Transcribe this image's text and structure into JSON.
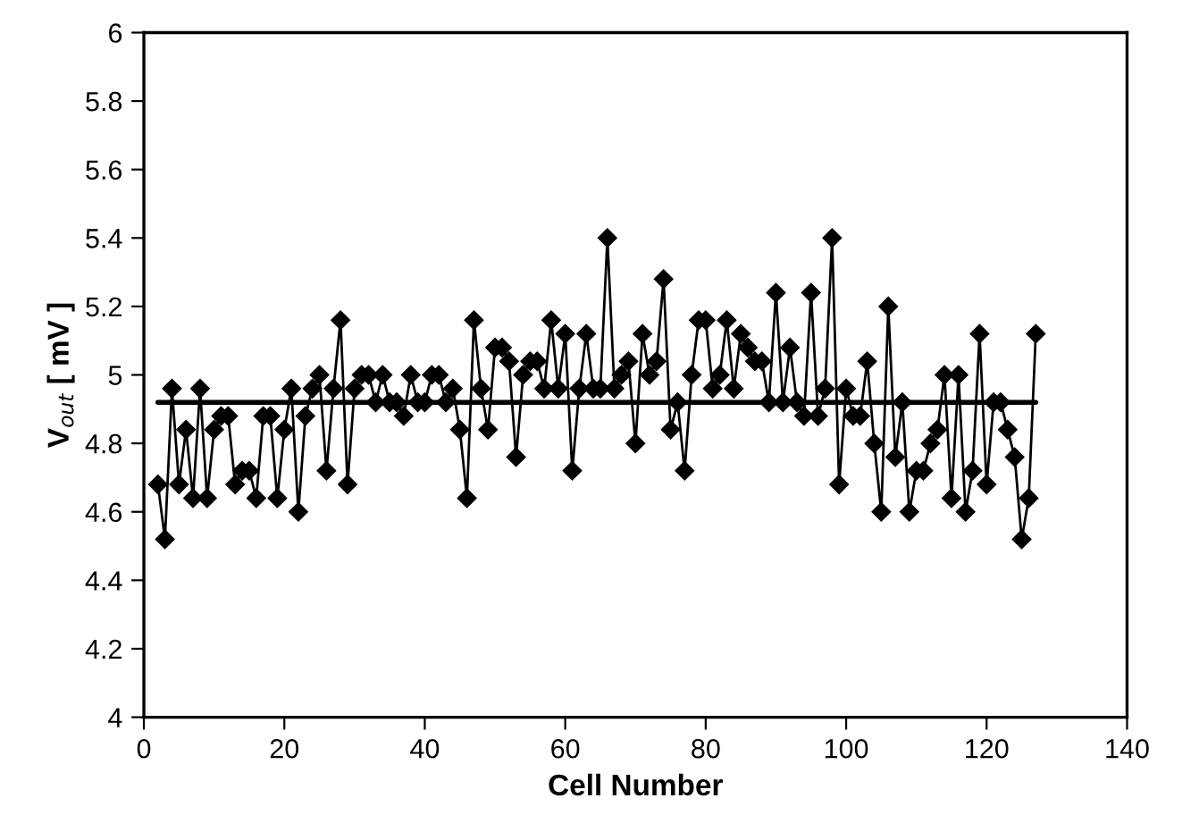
{
  "chart_data": {
    "type": "line",
    "xlabel": "Cell Number",
    "ylabel": "V$_{out}$ [ mV ]",
    "xlim": [
      0,
      140
    ],
    "xticks": [
      0,
      20,
      40,
      60,
      80,
      100,
      120,
      140
    ],
    "ylim": [
      4,
      6
    ],
    "yticks": [
      4,
      {
        "value": 4.2,
        "label": "4.2"
      },
      {
        "value": 4.4,
        "label": "4.4"
      },
      {
        "value": 4.6,
        "label": "4.6"
      },
      {
        "value": 4.8,
        "label": "4.8"
      },
      5,
      {
        "value": 5.2,
        "label": "5.2"
      },
      {
        "value": 5.4,
        "label": "5.4"
      },
      {
        "value": 5.6,
        "label": "5.6"
      },
      {
        "value": 5.8,
        "label": "5.8"
      },
      6
    ],
    "grid": false,
    "series": [
      {
        "color": "#000000",
        "marker": "diamond",
        "line_style": "solid",
        "x": [
          2,
          3,
          4,
          5,
          6,
          7,
          8,
          9,
          10,
          11,
          12,
          13,
          14,
          15,
          16,
          17,
          18,
          19,
          20,
          21,
          22,
          23,
          24,
          25,
          26,
          27,
          28,
          29,
          30,
          31,
          32,
          33,
          34,
          35,
          36,
          37,
          38,
          39,
          40,
          41,
          42,
          43,
          44,
          45,
          46,
          47,
          48,
          49,
          50,
          51,
          52,
          53,
          54,
          55,
          56,
          57,
          58,
          59,
          60,
          61,
          62,
          63,
          64,
          65,
          66,
          67,
          68,
          69,
          70,
          71,
          72,
          73,
          74,
          75,
          76,
          77,
          78,
          79,
          80,
          81,
          82,
          83,
          84,
          85,
          86,
          87,
          88,
          89,
          90,
          91,
          92,
          93,
          94,
          95,
          96,
          97,
          98,
          99,
          100,
          101,
          102,
          103,
          104,
          105,
          106,
          107,
          108,
          109,
          110,
          111,
          112,
          113,
          114,
          115,
          116,
          117,
          118,
          119,
          120,
          121,
          122,
          123,
          124,
          125,
          126,
          127
        ],
        "values": [
          4.68,
          4.52,
          4.96,
          4.68,
          4.84,
          4.64,
          4.96,
          4.64,
          4.84,
          4.88,
          4.88,
          4.68,
          4.72,
          4.72,
          4.64,
          4.88,
          4.88,
          4.64,
          4.84,
          4.96,
          4.6,
          4.88,
          4.96,
          5.0,
          4.72,
          4.96,
          5.16,
          4.68,
          4.96,
          5.0,
          5.0,
          4.92,
          5.0,
          4.92,
          4.92,
          4.88,
          5.0,
          4.92,
          4.92,
          5.0,
          5.0,
          4.92,
          4.96,
          4.84,
          4.64,
          5.16,
          4.96,
          4.84,
          5.08,
          5.08,
          5.04,
          4.76,
          5.0,
          5.04,
          5.04,
          4.96,
          5.16,
          4.96,
          5.12,
          4.72,
          4.96,
          5.12,
          4.96,
          4.96,
          5.4,
          4.96,
          5.0,
          5.04,
          4.8,
          5.12,
          5.0,
          5.04,
          5.28,
          4.84,
          4.92,
          4.72,
          5.0,
          5.16,
          5.16,
          4.96,
          5.0,
          5.16,
          4.96,
          5.12,
          5.08,
          5.04,
          5.04,
          4.92,
          5.24,
          4.92,
          5.08,
          4.92,
          4.88,
          5.24,
          4.88,
          4.96,
          5.4,
          4.68,
          4.96,
          4.88,
          4.88,
          5.04,
          4.8,
          4.6,
          5.2,
          4.76,
          4.92,
          4.6,
          4.72,
          4.72,
          4.8,
          4.84,
          5.0,
          4.64,
          5.0,
          4.6,
          4.72,
          5.12,
          4.68,
          4.92,
          4.92,
          4.84,
          4.76,
          4.52,
          4.64,
          5.12
        ]
      },
      {
        "color": "#000000",
        "marker": "none",
        "line_style": "solid",
        "x": [
          2,
          127
        ],
        "values": [
          4.92,
          4.92
        ]
      }
    ]
  }
}
